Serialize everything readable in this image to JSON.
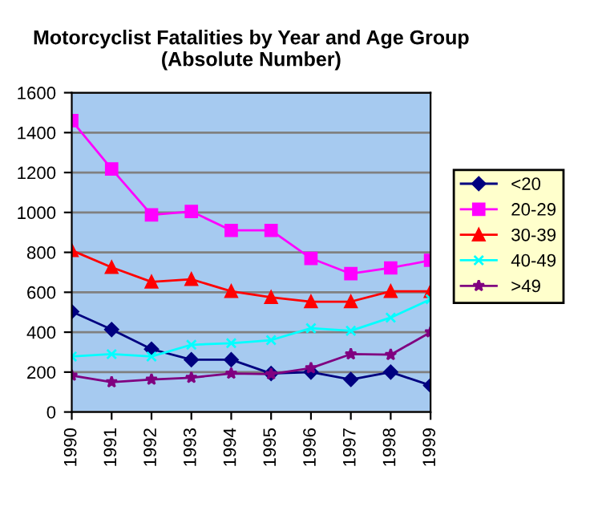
{
  "chart_data": {
    "type": "line",
    "title": "Motorcyclist Fatalities by Year and Age Group\n(Absolute Number)",
    "categories": [
      "1990",
      "1991",
      "1992",
      "1993",
      "1994",
      "1995",
      "1996",
      "1997",
      "1998",
      "1999"
    ],
    "series": [
      {
        "name": "<20",
        "color": "#000080",
        "marker": "diamond",
        "values": [
          503,
          413,
          315,
          262,
          262,
          193,
          200,
          163,
          200,
          133
        ]
      },
      {
        "name": "20-29",
        "color": "#ff00ff",
        "marker": "square",
        "values": [
          1460,
          1218,
          988,
          1005,
          910,
          910,
          770,
          693,
          722,
          760
        ]
      },
      {
        "name": "30-39",
        "color": "#ff0000",
        "marker": "triangle",
        "values": [
          810,
          725,
          652,
          665,
          605,
          575,
          553,
          553,
          605,
          605
        ]
      },
      {
        "name": "40-49",
        "color": "#00ffff",
        "marker": "cross",
        "values": [
          278,
          290,
          278,
          337,
          345,
          360,
          420,
          407,
          473,
          565
        ]
      },
      {
        "name": ">49",
        "color": "#800080",
        "marker": "star",
        "values": [
          183,
          150,
          163,
          172,
          193,
          190,
          220,
          290,
          287,
          400
        ]
      }
    ],
    "ylim": [
      0,
      1600
    ],
    "yticks": [
      0,
      200,
      400,
      600,
      800,
      1000,
      1200,
      1400,
      1600
    ],
    "grid": "y",
    "legend": "right"
  }
}
